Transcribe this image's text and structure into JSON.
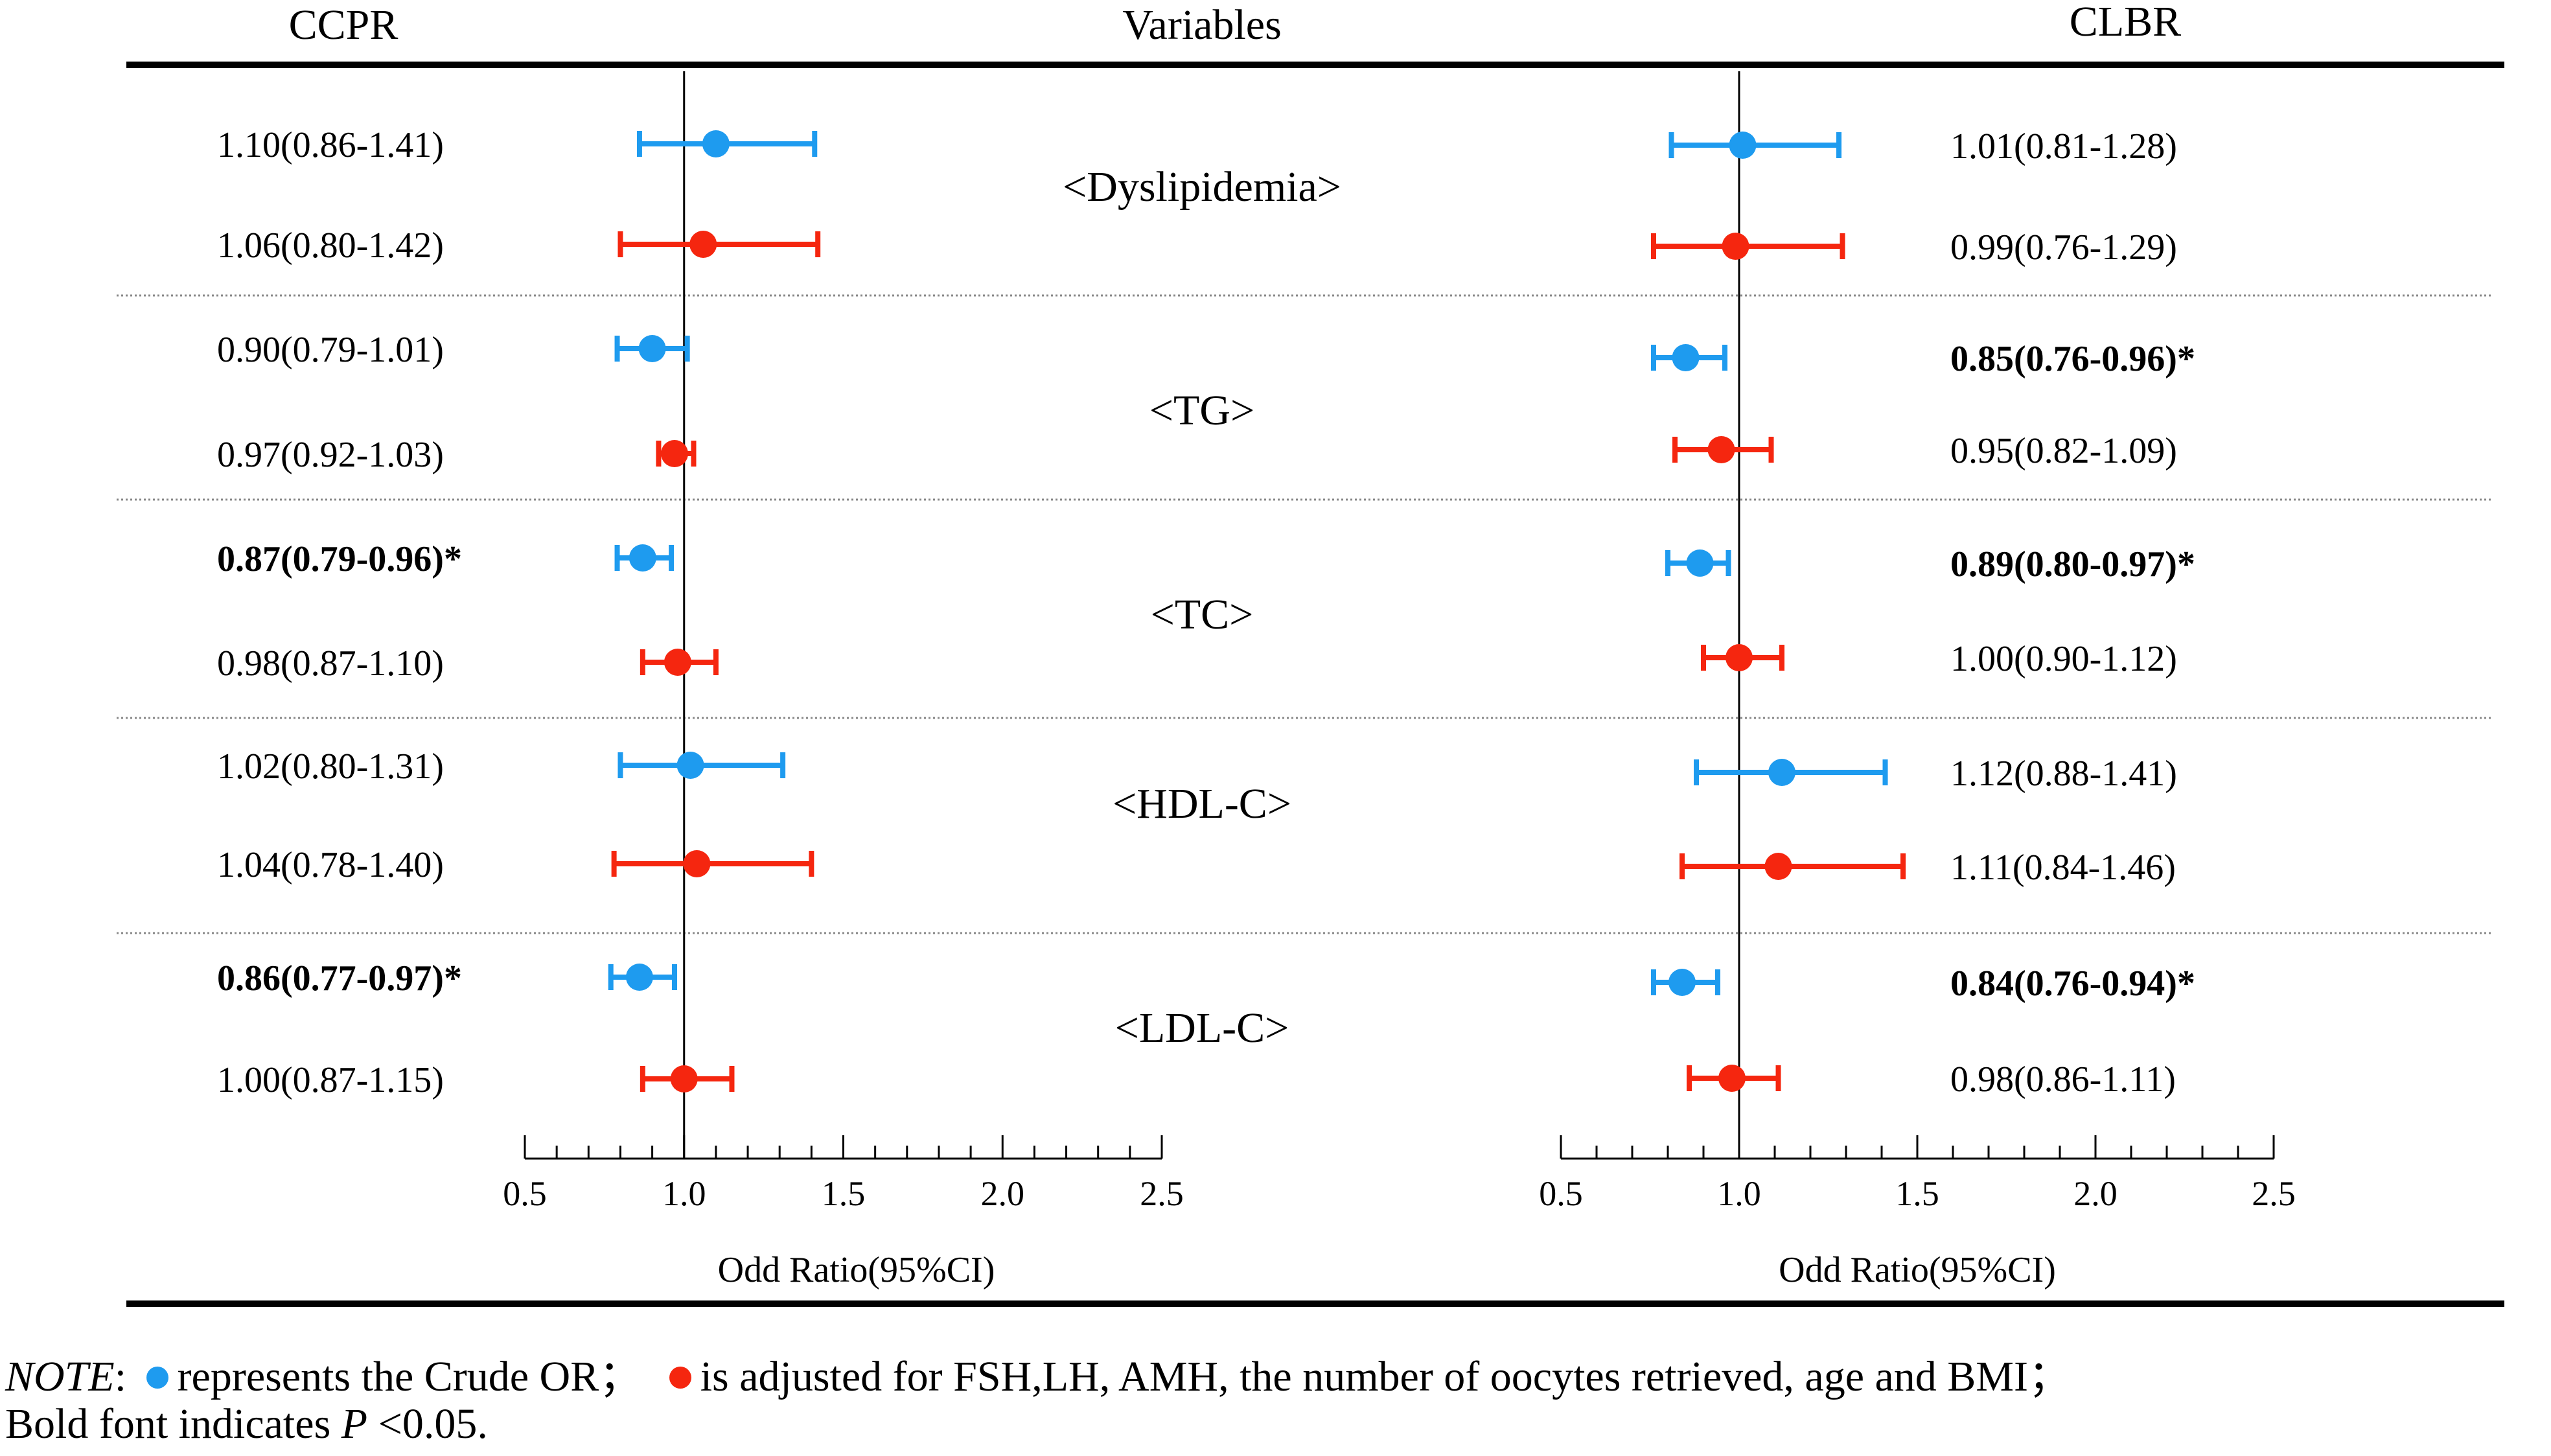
{
  "headers": {
    "left": "CCPR",
    "middle": "Variables",
    "right": "CLBR"
  },
  "colors": {
    "crude": "#1E9BEF",
    "adjusted": "#F5260F",
    "rule": "#000000",
    "divider": "#888888"
  },
  "variables": [
    "<Dyslipidemia>",
    "<TG>",
    "<TC>",
    "<HDL-C>",
    "<LDL-C>"
  ],
  "chart_data": [
    {
      "type": "forest",
      "title": "CCPR",
      "xlabel": "Odd Ratio(95%CI)",
      "xlim": [
        0.5,
        2.5
      ],
      "xticks": [
        "0.5",
        "1.0",
        "1.5",
        "2.0",
        "2.5"
      ],
      "reference_line": 1.0,
      "series": [
        {
          "name": "Crude OR",
          "color": "#1E9BEF",
          "points": [
            {
              "variable": "<Dyslipidemia>",
              "or": 1.1,
              "lo": 0.86,
              "hi": 1.41,
              "label": "1.10(0.86-1.41)",
              "bold": false
            },
            {
              "variable": "<TG>",
              "or": 0.9,
              "lo": 0.79,
              "hi": 1.01,
              "label": "0.90(0.79-1.01)",
              "bold": false
            },
            {
              "variable": "<TC>",
              "or": 0.87,
              "lo": 0.79,
              "hi": 0.96,
              "label": "0.87(0.79-0.96)*",
              "bold": true
            },
            {
              "variable": "<HDL-C>",
              "or": 1.02,
              "lo": 0.8,
              "hi": 1.31,
              "label": "1.02(0.80-1.31)",
              "bold": false
            },
            {
              "variable": "<LDL-C>",
              "or": 0.86,
              "lo": 0.77,
              "hi": 0.97,
              "label": "0.86(0.77-0.97)*",
              "bold": true
            }
          ]
        },
        {
          "name": "Adjusted OR",
          "color": "#F5260F",
          "points": [
            {
              "variable": "<Dyslipidemia>",
              "or": 1.06,
              "lo": 0.8,
              "hi": 1.42,
              "label": "1.06(0.80-1.42)",
              "bold": false
            },
            {
              "variable": "<TG>",
              "or": 0.97,
              "lo": 0.92,
              "hi": 1.03,
              "label": "0.97(0.92-1.03)",
              "bold": false
            },
            {
              "variable": "<TC>",
              "or": 0.98,
              "lo": 0.87,
              "hi": 1.1,
              "label": "0.98(0.87-1.10)",
              "bold": false
            },
            {
              "variable": "<HDL-C>",
              "or": 1.04,
              "lo": 0.78,
              "hi": 1.4,
              "label": "1.04(0.78-1.40)",
              "bold": false
            },
            {
              "variable": "<LDL-C>",
              "or": 1.0,
              "lo": 0.87,
              "hi": 1.15,
              "label": "1.00(0.87-1.15)",
              "bold": false
            }
          ]
        }
      ]
    },
    {
      "type": "forest",
      "title": "CLBR",
      "xlabel": "Odd Ratio(95%CI)",
      "xlim": [
        0.5,
        2.5
      ],
      "xticks": [
        "0.5",
        "1.0",
        "1.5",
        "2.0",
        "2.5"
      ],
      "reference_line": 1.0,
      "series": [
        {
          "name": "Crude OR",
          "color": "#1E9BEF",
          "points": [
            {
              "variable": "<Dyslipidemia>",
              "or": 1.01,
              "lo": 0.81,
              "hi": 1.28,
              "label": "1.01(0.81-1.28)",
              "bold": false
            },
            {
              "variable": "<TG>",
              "or": 0.85,
              "lo": 0.76,
              "hi": 0.96,
              "label": "0.85(0.76-0.96)*",
              "bold": true
            },
            {
              "variable": "<TC>",
              "or": 0.89,
              "lo": 0.8,
              "hi": 0.97,
              "label": "0.89(0.80-0.97)*",
              "bold": true
            },
            {
              "variable": "<HDL-C>",
              "or": 1.12,
              "lo": 0.88,
              "hi": 1.41,
              "label": "1.12(0.88-1.41)",
              "bold": false
            },
            {
              "variable": "<LDL-C>",
              "or": 0.84,
              "lo": 0.76,
              "hi": 0.94,
              "label": "0.84(0.76-0.94)*",
              "bold": true
            }
          ]
        },
        {
          "name": "Adjusted OR",
          "color": "#F5260F",
          "points": [
            {
              "variable": "<Dyslipidemia>",
              "or": 0.99,
              "lo": 0.76,
              "hi": 1.29,
              "label": "0.99(0.76-1.29)",
              "bold": false
            },
            {
              "variable": "<TG>",
              "or": 0.95,
              "lo": 0.82,
              "hi": 1.09,
              "label": "0.95(0.82-1.09)",
              "bold": false
            },
            {
              "variable": "<TC>",
              "or": 1.0,
              "lo": 0.9,
              "hi": 1.12,
              "label": "1.00(0.90-1.12)",
              "bold": false
            },
            {
              "variable": "<HDL-C>",
              "or": 1.11,
              "lo": 0.84,
              "hi": 1.46,
              "label": "1.11(0.84-1.46)",
              "bold": false
            },
            {
              "variable": "<LDL-C>",
              "or": 0.98,
              "lo": 0.86,
              "hi": 1.11,
              "label": "0.98(0.86-1.11)",
              "bold": false
            }
          ]
        }
      ]
    }
  ],
  "note": {
    "label": "NOTE",
    "sep1": ":",
    "crude_text": "represents the Crude OR；",
    "adjusted_text": "is adjusted for FSH,LH, AMH, the number of oocytes retrieved, age and BMI；",
    "line2_prefix": "Bold font indicates ",
    "line2_p": "P",
    "line2_suffix": " <0.05."
  }
}
